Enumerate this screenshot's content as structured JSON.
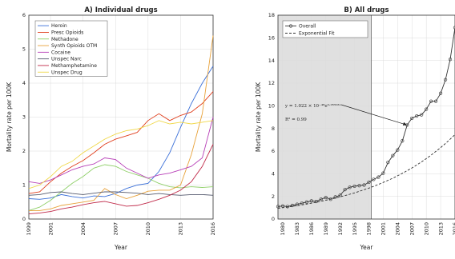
{
  "chart_data": [
    {
      "type": "line",
      "title": "A) Individual drugs",
      "xlabel": "Year",
      "ylabel": "Mortality rate per 100K",
      "xlim": [
        1999,
        2016
      ],
      "ylim": [
        0,
        6
      ],
      "xticks": [
        "1999",
        "2001",
        "2004",
        "2007",
        "2010",
        "2013",
        "2016"
      ],
      "yticks": [
        "0",
        "1",
        "2",
        "3",
        "4",
        "5",
        "6"
      ],
      "grid": true,
      "legend": "top-left",
      "x": [
        1999,
        2000,
        2001,
        2002,
        2003,
        2004,
        2005,
        2006,
        2007,
        2008,
        2009,
        2010,
        2011,
        2012,
        2013,
        2014,
        2015,
        2016
      ],
      "series": [
        {
          "name": "Heroin",
          "color": "#3a6fd8",
          "values": [
            0.6,
            0.58,
            0.62,
            0.72,
            0.66,
            0.62,
            0.68,
            0.66,
            0.75,
            0.9,
            1.0,
            1.05,
            1.4,
            1.95,
            2.7,
            3.4,
            4.0,
            4.5
          ]
        },
        {
          "name": "Presc Opioids",
          "color": "#e0401f",
          "values": [
            0.75,
            0.8,
            1.1,
            1.35,
            1.55,
            1.72,
            1.95,
            2.2,
            2.35,
            2.45,
            2.55,
            2.9,
            3.1,
            2.9,
            3.05,
            3.15,
            3.4,
            3.75
          ]
        },
        {
          "name": "Methadone",
          "color": "#8fcf68",
          "values": [
            0.25,
            0.35,
            0.55,
            0.8,
            1.05,
            1.25,
            1.5,
            1.6,
            1.55,
            1.4,
            1.3,
            1.2,
            1.05,
            0.95,
            0.92,
            0.95,
            0.93,
            0.95
          ]
        },
        {
          "name": "Synth Opioids OTM",
          "color": "#e8a23a",
          "values": [
            0.25,
            0.25,
            0.3,
            0.4,
            0.45,
            0.5,
            0.55,
            0.9,
            0.72,
            0.6,
            0.7,
            0.82,
            0.85,
            0.85,
            1.0,
            1.9,
            3.1,
            5.4
          ]
        },
        {
          "name": "Cocaine",
          "color": "#b73fb7",
          "values": [
            1.1,
            1.05,
            1.15,
            1.3,
            1.45,
            1.55,
            1.62,
            1.8,
            1.75,
            1.5,
            1.35,
            1.2,
            1.3,
            1.35,
            1.45,
            1.55,
            1.8,
            3.0
          ]
        },
        {
          "name": "Unspec Narc",
          "color": "#555a6e",
          "values": [
            0.7,
            0.72,
            0.78,
            0.8,
            0.75,
            0.72,
            0.76,
            0.8,
            0.8,
            0.78,
            0.76,
            0.72,
            0.75,
            0.72,
            0.7,
            0.72,
            0.72,
            0.7
          ]
        },
        {
          "name": "Methamphetamine",
          "color": "#c02a4a",
          "values": [
            0.15,
            0.18,
            0.22,
            0.3,
            0.35,
            0.42,
            0.48,
            0.52,
            0.45,
            0.38,
            0.4,
            0.48,
            0.58,
            0.7,
            0.85,
            1.1,
            1.55,
            2.2
          ]
        },
        {
          "name": "Unspec Drug",
          "color": "#f0d84a",
          "values": [
            0.9,
            1.0,
            1.25,
            1.55,
            1.7,
            1.95,
            2.15,
            2.35,
            2.5,
            2.6,
            2.65,
            2.75,
            2.9,
            2.8,
            2.85,
            2.8,
            2.85,
            2.9
          ]
        }
      ]
    },
    {
      "type": "line",
      "title": "B) All drugs",
      "xlabel": "Year",
      "ylabel": "Mortality rate per 100K",
      "xlim": [
        1979,
        2016
      ],
      "ylim": [
        0,
        18
      ],
      "xticks": [
        "1980",
        "1983",
        "1986",
        "1989",
        "1992",
        "1995",
        "1998",
        "2001",
        "2004",
        "2007",
        "2010",
        "2013",
        "2016"
      ],
      "yticks": [
        "0",
        "2",
        "4",
        "6",
        "8",
        "10",
        "12",
        "14",
        "16",
        "18"
      ],
      "grid": true,
      "legend": "top-left",
      "shaded_region": [
        1979,
        1998.5
      ],
      "annotation": {
        "text_line1": "y = 1.022 × 10⁻⁴⁸e⁰·⁰⁵⁵⁰³ˣ",
        "text_line2": "R² = 0.99",
        "arrow_to": [
          2006,
          8.3
        ]
      },
      "x": [
        1979,
        1980,
        1981,
        1982,
        1983,
        1984,
        1985,
        1986,
        1987,
        1988,
        1989,
        1990,
        1991,
        1992,
        1993,
        1994,
        1995,
        1996,
        1997,
        1998,
        1999,
        2000,
        2001,
        2002,
        2003,
        2004,
        2005,
        2006,
        2007,
        2008,
        2009,
        2010,
        2011,
        2012,
        2013,
        2014,
        2015,
        2016
      ],
      "series": [
        {
          "name": "Overall",
          "style": "solid-circles",
          "color": "#333333",
          "values": [
            1.1,
            1.15,
            1.1,
            1.2,
            1.3,
            1.4,
            1.5,
            1.6,
            1.55,
            1.75,
            1.9,
            1.75,
            1.95,
            2.1,
            2.6,
            2.8,
            2.9,
            2.95,
            3.0,
            3.25,
            3.5,
            3.7,
            4.05,
            5.0,
            5.6,
            6.1,
            6.9,
            8.3,
            8.9,
            9.1,
            9.2,
            9.7,
            10.4,
            10.4,
            11.1,
            12.3,
            14.1,
            16.9
          ]
        },
        {
          "name": "Exponential Fit",
          "style": "dashed",
          "color": "#333333",
          "values": [
            0.95,
            1.0,
            1.06,
            1.12,
            1.18,
            1.25,
            1.32,
            1.4,
            1.48,
            1.57,
            1.66,
            1.75,
            1.85,
            1.96,
            2.07,
            2.19,
            2.31,
            2.45,
            2.59,
            2.73,
            2.89,
            3.06,
            3.23,
            3.42,
            3.61,
            3.82,
            4.04,
            4.27,
            4.51,
            4.77,
            5.05,
            5.34,
            5.64,
            5.97,
            6.31,
            6.67,
            7.05,
            7.46
          ]
        }
      ]
    }
  ]
}
